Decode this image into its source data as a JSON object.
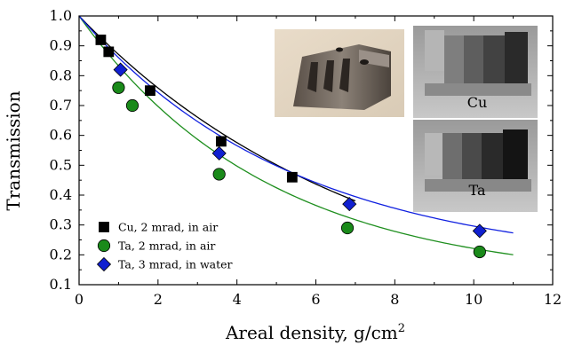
{
  "chart_data": {
    "type": "scatter",
    "title": "",
    "xlabel": "Areal density, g/cm",
    "xlabel_superscript": "2",
    "ylabel": "Transmission",
    "xlim": [
      0,
      12
    ],
    "ylim": [
      0.1,
      1.0
    ],
    "xticks": [
      "0",
      "2",
      "4",
      "6",
      "8",
      "10",
      "12"
    ],
    "yticks": [
      "0.1",
      "0.2",
      "0.3",
      "0.4",
      "0.5",
      "0.6",
      "0.7",
      "0.8",
      "0.9",
      "1.0"
    ],
    "grid": false,
    "legend_position": "bottom-left",
    "series": [
      {
        "name": "Cu, 2 mrad, in air",
        "marker": "square",
        "color": "#000000",
        "fit_color": "#000000",
        "fit_xmax": 7.0,
        "fit_mu": 0.138,
        "points": [
          [
            0.55,
            0.92
          ],
          [
            0.75,
            0.88
          ],
          [
            1.8,
            0.75
          ],
          [
            3.6,
            0.58
          ],
          [
            5.4,
            0.46
          ]
        ]
      },
      {
        "name": "Ta, 2 mrad, in air",
        "marker": "circle",
        "color": "#1a8a1a",
        "fit_color": "#1f8f1f",
        "fit_xmax": 11.0,
        "fit_mu": 0.208,
        "fit_offset": 0.11,
        "points": [
          [
            1.0,
            0.76
          ],
          [
            1.35,
            0.7
          ],
          [
            3.55,
            0.47
          ],
          [
            6.8,
            0.29
          ],
          [
            10.15,
            0.21
          ]
        ]
      },
      {
        "name": "Ta, 3 mrad, in water",
        "marker": "diamond",
        "color": "#1020d0",
        "fit_color": "#1020e0",
        "fit_xmax": 11.0,
        "fit_mu": 0.182,
        "fit_offset": 0.16,
        "points": [
          [
            1.05,
            0.82
          ],
          [
            3.55,
            0.54
          ],
          [
            6.85,
            0.37
          ],
          [
            10.15,
            0.28
          ]
        ]
      }
    ]
  },
  "insets": {
    "photo_name": "sample-photo",
    "cu_label": "Cu",
    "ta_label": "Ta"
  }
}
